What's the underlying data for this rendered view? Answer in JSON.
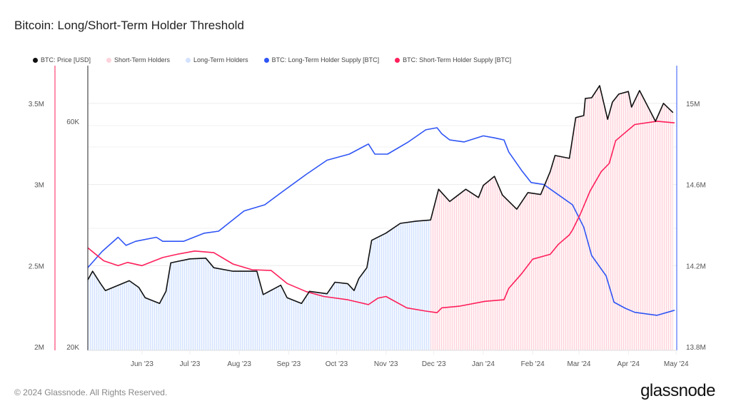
{
  "title": "Bitcoin: Long/Short-Term Holder Threshold",
  "footer": "© 2024 Glassnode. All Rights Reserved.",
  "logo": "glassnode",
  "chart_data": {
    "type": "line",
    "title": "Bitcoin: Long/Short-Term Holder Threshold",
    "legend_position": "top-left",
    "grid": true,
    "legend": [
      {
        "label": "BTC: Price [USD]",
        "color": "#111111"
      },
      {
        "label": "Short-Term Holders",
        "color": "#ffd3dc"
      },
      {
        "label": "Long-Term Holders",
        "color": "#d3e2ff"
      },
      {
        "label": "BTC: Long-Term Holder Supply [BTC]",
        "color": "#2f55f5"
      },
      {
        "label": "BTC: Short-Term Holder Supply [BTC]",
        "color": "#ff1f5a"
      }
    ],
    "xlim": [
      "2023-04-28",
      "2024-04-30"
    ],
    "x_ticks": [
      {
        "date": "2023-06-01",
        "label": "Jun '23"
      },
      {
        "date": "2023-07-01",
        "label": "Jul '23"
      },
      {
        "date": "2023-08-01",
        "label": "Aug '23"
      },
      {
        "date": "2023-09-01",
        "label": "Sep '23"
      },
      {
        "date": "2023-10-01",
        "label": "Oct '23"
      },
      {
        "date": "2023-11-01",
        "label": "Nov '23"
      },
      {
        "date": "2023-12-01",
        "label": "Dec '23"
      },
      {
        "date": "2024-01-01",
        "label": "Jan '24"
      },
      {
        "date": "2024-02-01",
        "label": "Feb '24"
      },
      {
        "date": "2024-03-01",
        "label": "Mar '24"
      },
      {
        "date": "2024-04-01",
        "label": "Apr '24"
      },
      {
        "date": "2024-05-01",
        "label": "May '24"
      }
    ],
    "axes": {
      "sth_supply": {
        "side": "left-outer",
        "ylim": [
          2000000,
          3750000
        ],
        "ticks": [
          {
            "v": 2000000,
            "label": "2M"
          },
          {
            "v": 2500000,
            "label": "2.5M"
          },
          {
            "v": 3000000,
            "label": "3M"
          },
          {
            "v": 3500000,
            "label": "3.5M"
          }
        ]
      },
      "price": {
        "side": "left-inner",
        "scale": "log",
        "ticks": [
          {
            "v": 20000,
            "label": "20K"
          },
          {
            "v": 60000,
            "label": "60K"
          }
        ]
      },
      "lth_supply": {
        "side": "right",
        "ylim": [
          13800000,
          15200000
        ],
        "ticks": [
          {
            "v": 13800000,
            "label": "13.8M"
          },
          {
            "v": 14200000,
            "label": "14.2M"
          },
          {
            "v": 14600000,
            "label": "14.6M"
          },
          {
            "v": 15000000,
            "label": "15M"
          }
        ]
      }
    },
    "holder_regimes": [
      {
        "label": "Long-Term Holders",
        "from": "2023-04-28",
        "to": "2023-11-29"
      },
      {
        "label": "Short-Term Holders",
        "from": "2023-11-29",
        "to": "2024-04-30"
      }
    ],
    "series": [
      {
        "name": "BTC: Price [USD]",
        "axis": "price",
        "color": "#111111",
        "points": [
          [
            "2023-04-28",
            27700
          ],
          [
            "2023-05-01",
            28900
          ],
          [
            "2023-05-06",
            27200
          ],
          [
            "2023-05-09",
            26300
          ],
          [
            "2023-05-24",
            27600
          ],
          [
            "2023-05-30",
            26700
          ],
          [
            "2023-06-03",
            25400
          ],
          [
            "2023-06-12",
            24700
          ],
          [
            "2023-06-16",
            26200
          ],
          [
            "2023-06-19",
            30100
          ],
          [
            "2023-07-01",
            30700
          ],
          [
            "2023-07-11",
            30800
          ],
          [
            "2023-07-16",
            29400
          ],
          [
            "2023-07-28",
            28900
          ],
          [
            "2023-08-12",
            28900
          ],
          [
            "2023-08-16",
            25800
          ],
          [
            "2023-08-27",
            27000
          ],
          [
            "2023-08-31",
            25400
          ],
          [
            "2023-09-09",
            24700
          ],
          [
            "2023-09-14",
            26200
          ],
          [
            "2023-09-25",
            25900
          ],
          [
            "2023-09-30",
            27400
          ],
          [
            "2023-10-08",
            27200
          ],
          [
            "2023-10-12",
            26300
          ],
          [
            "2023-10-15",
            27900
          ],
          [
            "2023-10-20",
            29400
          ],
          [
            "2023-10-23",
            33600
          ],
          [
            "2023-11-01",
            34800
          ],
          [
            "2023-11-10",
            36500
          ],
          [
            "2023-11-20",
            36900
          ],
          [
            "2023-11-29",
            37100
          ],
          [
            "2023-12-04",
            43100
          ],
          [
            "2023-12-11",
            40600
          ],
          [
            "2023-12-21",
            43100
          ],
          [
            "2023-12-29",
            41400
          ],
          [
            "2024-01-01",
            43900
          ],
          [
            "2024-01-08",
            45900
          ],
          [
            "2024-01-13",
            41900
          ],
          [
            "2024-01-22",
            39100
          ],
          [
            "2024-01-29",
            42400
          ],
          [
            "2024-02-06",
            42000
          ],
          [
            "2024-02-12",
            47000
          ],
          [
            "2024-02-15",
            50800
          ],
          [
            "2024-02-24",
            50100
          ],
          [
            "2024-02-28",
            61100
          ],
          [
            "2024-03-04",
            61700
          ],
          [
            "2024-03-05",
            67100
          ],
          [
            "2024-03-09",
            67300
          ],
          [
            "2024-03-14",
            71400
          ],
          [
            "2024-03-19",
            60600
          ],
          [
            "2024-03-22",
            65900
          ],
          [
            "2024-03-26",
            68500
          ],
          [
            "2024-04-01",
            69400
          ],
          [
            "2024-04-03",
            64300
          ],
          [
            "2024-04-08",
            69700
          ],
          [
            "2024-04-14",
            63700
          ],
          [
            "2024-04-18",
            60000
          ],
          [
            "2024-04-23",
            65500
          ],
          [
            "2024-04-29",
            62600
          ]
        ]
      },
      {
        "name": "BTC: Long-Term Holder Supply [BTC]",
        "axis": "lth_supply",
        "color": "#2f55f5",
        "points": [
          [
            "2023-04-28",
            14190000
          ],
          [
            "2023-05-07",
            14270000
          ],
          [
            "2023-05-17",
            14340000
          ],
          [
            "2023-05-22",
            14300000
          ],
          [
            "2023-05-28",
            14320000
          ],
          [
            "2023-06-10",
            14340000
          ],
          [
            "2023-06-14",
            14320000
          ],
          [
            "2023-06-27",
            14320000
          ],
          [
            "2023-07-10",
            14360000
          ],
          [
            "2023-07-19",
            14370000
          ],
          [
            "2023-08-04",
            14470000
          ],
          [
            "2023-08-17",
            14500000
          ],
          [
            "2023-08-29",
            14570000
          ],
          [
            "2023-09-12",
            14650000
          ],
          [
            "2023-09-25",
            14720000
          ],
          [
            "2023-10-09",
            14750000
          ],
          [
            "2023-10-21",
            14800000
          ],
          [
            "2023-10-25",
            14750000
          ],
          [
            "2023-11-02",
            14750000
          ],
          [
            "2023-11-15",
            14810000
          ],
          [
            "2023-11-26",
            14870000
          ],
          [
            "2023-12-03",
            14880000
          ],
          [
            "2023-12-06",
            14850000
          ],
          [
            "2023-12-11",
            14820000
          ],
          [
            "2023-12-20",
            14810000
          ],
          [
            "2024-01-01",
            14840000
          ],
          [
            "2024-01-08",
            14830000
          ],
          [
            "2024-01-14",
            14820000
          ],
          [
            "2024-01-17",
            14760000
          ],
          [
            "2024-01-25",
            14670000
          ],
          [
            "2024-01-31",
            14610000
          ],
          [
            "2024-02-08",
            14600000
          ],
          [
            "2024-02-17",
            14550000
          ],
          [
            "2024-02-26",
            14500000
          ],
          [
            "2024-03-04",
            14390000
          ],
          [
            "2024-03-09",
            14250000
          ],
          [
            "2024-03-18",
            14150000
          ],
          [
            "2024-03-23",
            14020000
          ],
          [
            "2024-03-30",
            13990000
          ],
          [
            "2024-04-05",
            13970000
          ],
          [
            "2024-04-19",
            13955000
          ],
          [
            "2024-04-30",
            13980000
          ]
        ]
      },
      {
        "name": "BTC: Short-Term Holder Supply [BTC]",
        "axis": "sth_supply",
        "color": "#ff1f5a",
        "points": [
          [
            "2023-04-28",
            2610000
          ],
          [
            "2023-05-08",
            2530000
          ],
          [
            "2023-05-17",
            2500000
          ],
          [
            "2023-05-23",
            2520000
          ],
          [
            "2023-06-01",
            2500000
          ],
          [
            "2023-06-14",
            2550000
          ],
          [
            "2023-06-23",
            2570000
          ],
          [
            "2023-07-04",
            2590000
          ],
          [
            "2023-07-16",
            2580000
          ],
          [
            "2023-07-28",
            2510000
          ],
          [
            "2023-08-09",
            2475000
          ],
          [
            "2023-08-21",
            2470000
          ],
          [
            "2023-08-31",
            2390000
          ],
          [
            "2023-09-12",
            2340000
          ],
          [
            "2023-09-23",
            2310000
          ],
          [
            "2023-10-08",
            2290000
          ],
          [
            "2023-10-21",
            2260000
          ],
          [
            "2023-10-27",
            2300000
          ],
          [
            "2023-11-01",
            2310000
          ],
          [
            "2023-11-14",
            2240000
          ],
          [
            "2023-11-26",
            2220000
          ],
          [
            "2023-12-03",
            2210000
          ],
          [
            "2023-12-06",
            2240000
          ],
          [
            "2023-12-17",
            2250000
          ],
          [
            "2024-01-02",
            2280000
          ],
          [
            "2024-01-14",
            2290000
          ],
          [
            "2024-01-17",
            2360000
          ],
          [
            "2024-01-25",
            2450000
          ],
          [
            "2024-02-01",
            2540000
          ],
          [
            "2024-02-12",
            2570000
          ],
          [
            "2024-02-17",
            2630000
          ],
          [
            "2024-02-24",
            2690000
          ],
          [
            "2024-02-26",
            2720000
          ],
          [
            "2024-03-02",
            2820000
          ],
          [
            "2024-03-08",
            2960000
          ],
          [
            "2024-03-15",
            3080000
          ],
          [
            "2024-03-20",
            3130000
          ],
          [
            "2024-03-24",
            3270000
          ],
          [
            "2024-03-30",
            3320000
          ],
          [
            "2024-04-05",
            3370000
          ],
          [
            "2024-04-19",
            3390000
          ],
          [
            "2024-04-30",
            3380000
          ]
        ]
      }
    ]
  }
}
